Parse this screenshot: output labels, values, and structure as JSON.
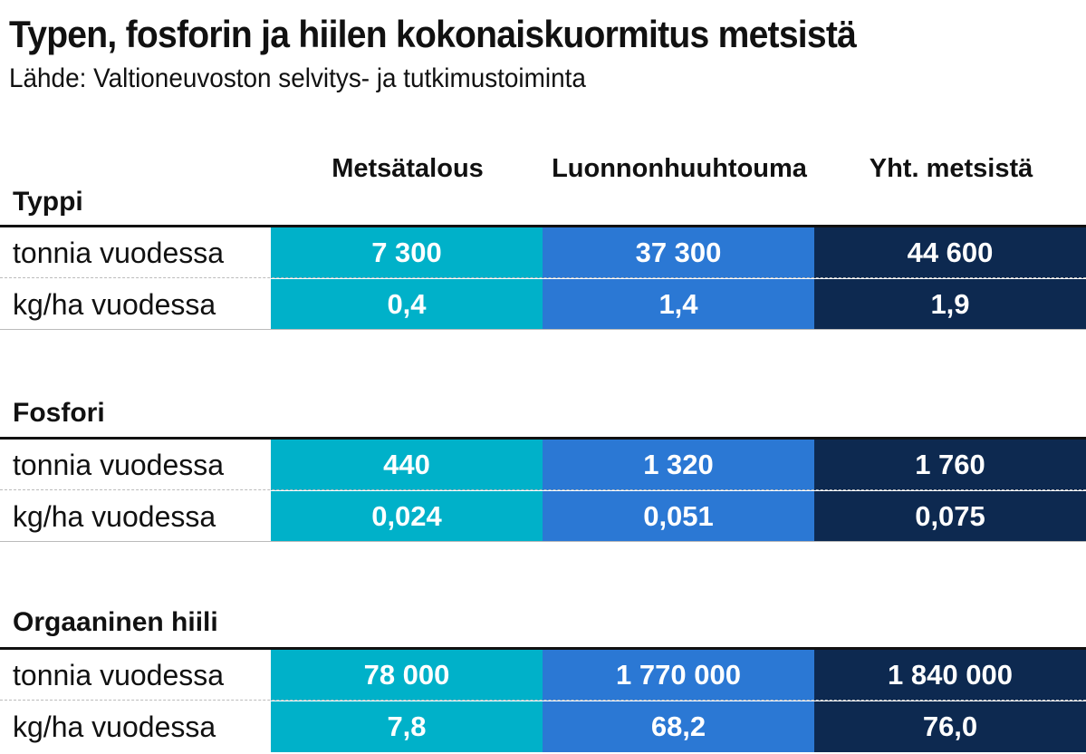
{
  "chart_data": {
    "type": "table",
    "title": "Typen, fosforin ja hiilen kokonaiskuormitus metsistä",
    "subtitle": "Lähde: Valtioneuvoston selvitys- ja tutkimustoiminta",
    "columns": [
      "Metsätalous",
      "Luonnonhuuhtouma",
      "Yht. metsistä"
    ],
    "colors": [
      "#00b1c9",
      "#2b78d4",
      "#0d2950"
    ],
    "sections": [
      {
        "name": "Typpi",
        "rows": [
          {
            "label": "tonnia vuodessa",
            "values": [
              "7 300",
              "37 300",
              "44 600"
            ]
          },
          {
            "label": "kg/ha vuodessa",
            "values": [
              "0,4",
              "1,4",
              "1,9"
            ]
          }
        ]
      },
      {
        "name": "Fosfori",
        "rows": [
          {
            "label": "tonnia vuodessa",
            "values": [
              "440",
              "1 320",
              "1 760"
            ]
          },
          {
            "label": "kg/ha vuodessa",
            "values": [
              "0,024",
              "0,051",
              "0,075"
            ]
          }
        ]
      },
      {
        "name": "Orgaaninen hiili",
        "rows": [
          {
            "label": "tonnia vuodessa",
            "values": [
              "78 000",
              "1 770 000",
              "1 840 000"
            ]
          },
          {
            "label": "kg/ha vuodessa",
            "values": [
              "7,8",
              "68,2",
              "76,0"
            ]
          }
        ]
      }
    ]
  }
}
